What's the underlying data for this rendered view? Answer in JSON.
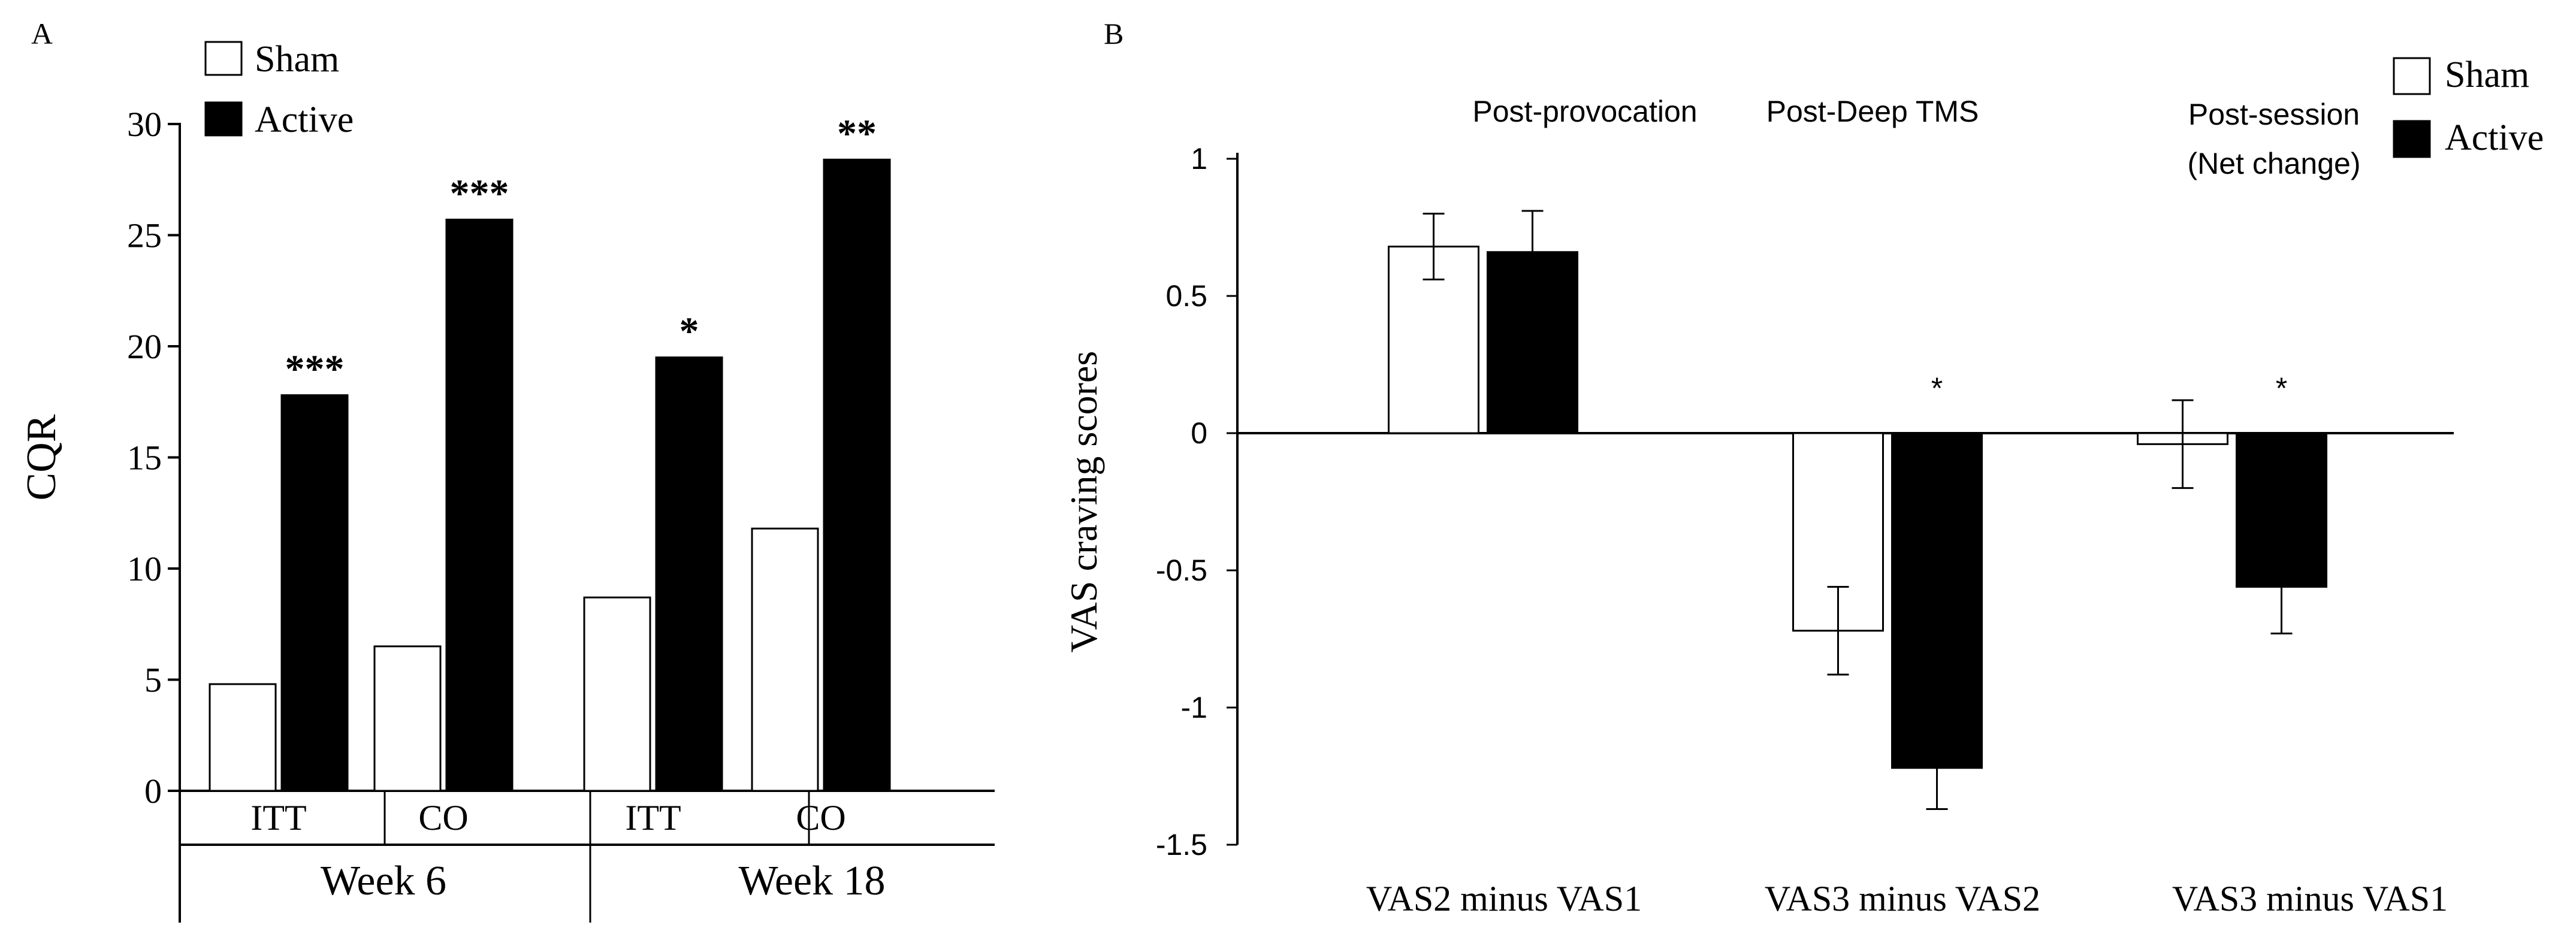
{
  "chart_data": [
    {
      "panel": "A",
      "type": "bar",
      "title": "",
      "ylabel": "CQR",
      "xlabel": "",
      "ylim": [
        0,
        30
      ],
      "yticks": [
        0,
        5,
        10,
        15,
        20,
        25,
        30
      ],
      "groups": [
        {
          "label": "Week 6",
          "categories": [
            "ITT",
            "CO"
          ]
        },
        {
          "label": "Week 18",
          "categories": [
            "ITT",
            "CO"
          ]
        }
      ],
      "categories": [
        "ITT",
        "CO",
        "ITT",
        "CO"
      ],
      "series": [
        {
          "name": "Sham",
          "color": "#ffffff",
          "values": [
            4.8,
            6.5,
            8.7,
            11.8
          ]
        },
        {
          "name": "Active",
          "color": "#000000",
          "values": [
            17.8,
            25.7,
            19.5,
            28.4
          ]
        }
      ],
      "significance": [
        "***",
        "***",
        "*",
        "**"
      ],
      "legend": [
        "Sham",
        "Active"
      ]
    },
    {
      "panel": "B",
      "type": "bar",
      "title": "",
      "ylabel": "VAS  craving  scores",
      "xlabel": "",
      "ylim": [
        -1.5,
        1
      ],
      "yticks": [
        1,
        0.5,
        0,
        -0.5,
        -1,
        -1.5
      ],
      "ytick_labels": [
        "1",
        "0.5",
        "0",
        "-0.5",
        "-1",
        "-1.5"
      ],
      "categories": [
        "VAS2 minus VAS1",
        "VAS3 minus VAS2",
        "VAS3 minus VAS1"
      ],
      "group_titles": [
        [
          "Post-provocation"
        ],
        [
          "Post-Deep TMS"
        ],
        [
          "Post-session",
          "(Net change)"
        ]
      ],
      "series": [
        {
          "name": "Sham",
          "color": "#ffffff",
          "values": [
            0.68,
            -0.72,
            -0.04
          ],
          "errors": [
            0.12,
            0.16,
            0.16
          ]
        },
        {
          "name": "Active",
          "color": "#000000",
          "values": [
            0.66,
            -1.22,
            -0.56
          ],
          "errors": [
            0.15,
            0.15,
            0.17
          ]
        }
      ],
      "significance": [
        "",
        "*",
        "*"
      ],
      "legend": [
        "Sham",
        "Active"
      ]
    }
  ]
}
